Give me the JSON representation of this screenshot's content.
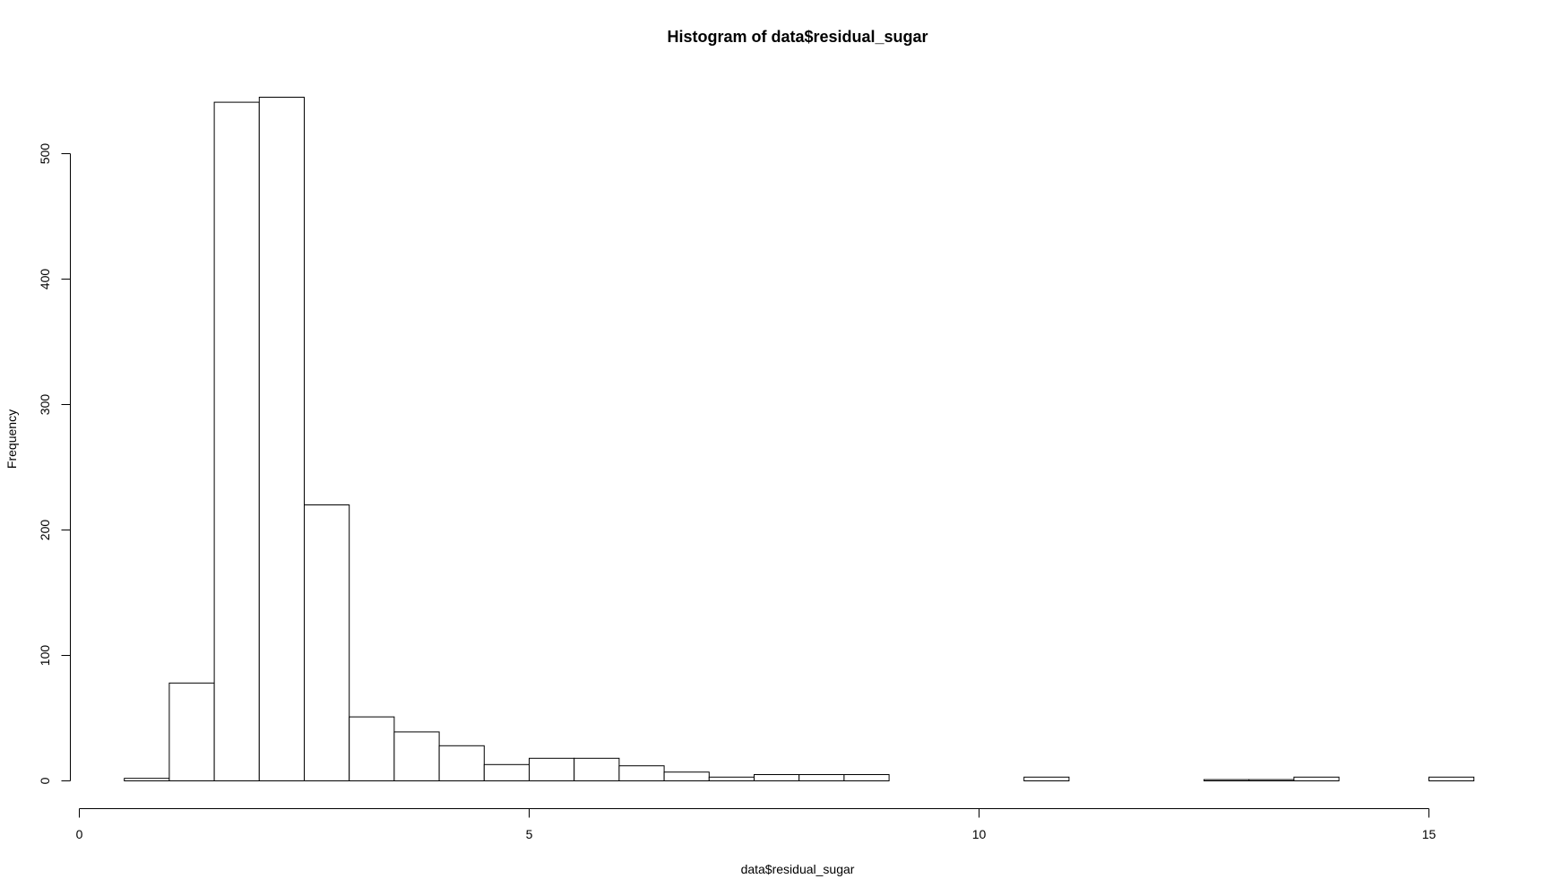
{
  "chart_data": {
    "type": "bar",
    "title": "Histogram of data$residual_sugar",
    "xlabel": "data$residual_sugar",
    "ylabel": "Frequency",
    "xlim": [
      0,
      15.5
    ],
    "ylim": [
      0,
      550
    ],
    "x_ticks": [
      0,
      5,
      10,
      15
    ],
    "y_ticks": [
      0,
      100,
      200,
      300,
      400,
      500
    ],
    "grid": false,
    "bins": [
      {
        "x0": 0.5,
        "x1": 1.0,
        "count": 2
      },
      {
        "x0": 1.0,
        "x1": 1.5,
        "count": 78
      },
      {
        "x0": 1.5,
        "x1": 2.0,
        "count": 541
      },
      {
        "x0": 2.0,
        "x1": 2.5,
        "count": 545
      },
      {
        "x0": 2.5,
        "x1": 3.0,
        "count": 220
      },
      {
        "x0": 3.0,
        "x1": 3.5,
        "count": 51
      },
      {
        "x0": 3.5,
        "x1": 4.0,
        "count": 39
      },
      {
        "x0": 4.0,
        "x1": 4.5,
        "count": 28
      },
      {
        "x0": 4.5,
        "x1": 5.0,
        "count": 13
      },
      {
        "x0": 5.0,
        "x1": 5.5,
        "count": 18
      },
      {
        "x0": 5.5,
        "x1": 6.0,
        "count": 18
      },
      {
        "x0": 6.0,
        "x1": 6.5,
        "count": 12
      },
      {
        "x0": 6.5,
        "x1": 7.0,
        "count": 7
      },
      {
        "x0": 7.0,
        "x1": 7.5,
        "count": 3
      },
      {
        "x0": 7.5,
        "x1": 8.0,
        "count": 5
      },
      {
        "x0": 8.0,
        "x1": 8.5,
        "count": 5
      },
      {
        "x0": 8.5,
        "x1": 9.0,
        "count": 5
      },
      {
        "x0": 9.0,
        "x1": 9.5,
        "count": 0
      },
      {
        "x0": 9.5,
        "x1": 10.0,
        "count": 0
      },
      {
        "x0": 10.0,
        "x1": 10.5,
        "count": 0
      },
      {
        "x0": 10.5,
        "x1": 11.0,
        "count": 3
      },
      {
        "x0": 11.0,
        "x1": 11.5,
        "count": 0
      },
      {
        "x0": 11.5,
        "x1": 12.0,
        "count": 0
      },
      {
        "x0": 12.0,
        "x1": 12.5,
        "count": 0
      },
      {
        "x0": 12.5,
        "x1": 13.0,
        "count": 1
      },
      {
        "x0": 13.0,
        "x1": 13.5,
        "count": 1
      },
      {
        "x0": 13.5,
        "x1": 14.0,
        "count": 3
      },
      {
        "x0": 14.0,
        "x1": 14.5,
        "count": 0
      },
      {
        "x0": 14.5,
        "x1": 15.0,
        "count": 0
      },
      {
        "x0": 15.0,
        "x1": 15.5,
        "count": 3
      }
    ]
  }
}
